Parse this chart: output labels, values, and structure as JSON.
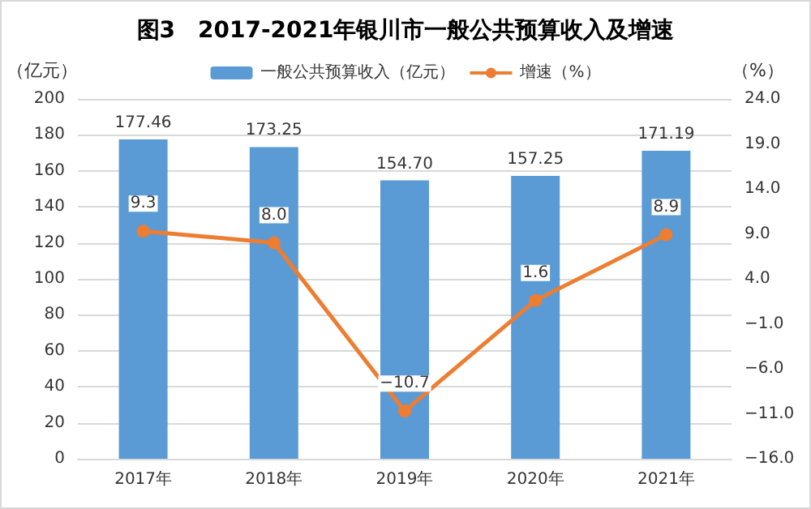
{
  "chart_data": {
    "type": "bar",
    "title": "图3　2017-2021年银川市一般公共预算收入及增速",
    "ylabel": "（亿元）",
    "y2label": "（%）",
    "categories": [
      "2017年",
      "2018年",
      "2019年",
      "2020年",
      "2021年"
    ],
    "series": [
      {
        "name": "一般公共预算收入（亿元）",
        "color": "#5b9bd5",
        "values": [
          177.46,
          173.25,
          154.7,
          157.25,
          171.19
        ],
        "value_labels": [
          "177.46",
          "173.25",
          "154.70",
          "157.25",
          "171.19"
        ]
      },
      {
        "name": "增速（%）",
        "type": "line",
        "axis": "y2",
        "color": "#ed7d31",
        "marker": "circle",
        "values": [
          9.3,
          8.0,
          -10.7,
          1.6,
          8.9
        ],
        "value_labels": [
          "9.3",
          "8.0",
          "−10.7",
          "1.6",
          "8.9"
        ]
      }
    ],
    "ylim": [
      0,
      200
    ],
    "yticks": [
      0,
      20,
      40,
      60,
      80,
      100,
      120,
      140,
      160,
      180,
      200
    ],
    "y2lim": [
      -16,
      24
    ],
    "y2ticks": [
      {
        "value": -16,
        "label": "−16.0"
      },
      {
        "value": -11,
        "label": "−11.0"
      },
      {
        "value": -6,
        "label": "−6.0"
      },
      {
        "value": -1,
        "label": "−1.0"
      },
      {
        "value": 4,
        "label": "4.0"
      },
      {
        "value": 9,
        "label": "9.0"
      },
      {
        "value": 14,
        "label": "14.0"
      },
      {
        "value": 19,
        "label": "19.0"
      },
      {
        "value": 24,
        "label": "24.0"
      }
    ],
    "grid": "y",
    "legend": "top"
  }
}
